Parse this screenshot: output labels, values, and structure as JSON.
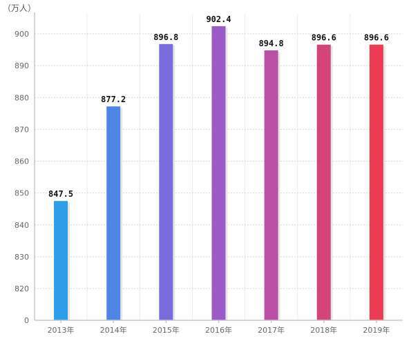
{
  "chart_data": {
    "type": "bar",
    "unit_label": "（万人）",
    "categories": [
      "2013年",
      "2014年",
      "2015年",
      "2016年",
      "2017年",
      "2018年",
      "2019年"
    ],
    "values": [
      847.5,
      877.2,
      896.8,
      902.4,
      894.8,
      896.6,
      896.6
    ],
    "value_labels": [
      "847.5",
      "877.2",
      "896.8",
      "902.4",
      "894.8",
      "896.6",
      "896.6"
    ],
    "yticks": [
      0,
      820,
      830,
      840,
      850,
      860,
      870,
      880,
      890,
      900
    ],
    "ylim": [
      810,
      905
    ],
    "axis_break": true,
    "grid": true,
    "bar_colors": [
      "#2e9ee8",
      "#4f86e6",
      "#7a6bdc",
      "#9b5ac8",
      "#bb4fa6",
      "#d54478",
      "#ec3b52"
    ]
  }
}
